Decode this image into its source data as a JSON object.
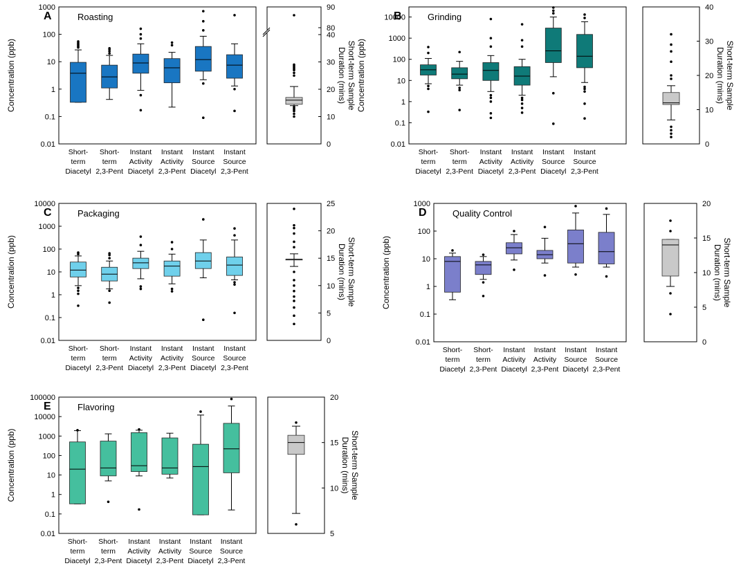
{
  "figure": {
    "ylabel": "Concentration (ppb)",
    "duration_label_line1": "Short-term Sample",
    "duration_label_line2": "Duration (mins)",
    "categories": [
      [
        "Short-",
        "term",
        "Diacetyl"
      ],
      [
        "Short-",
        "term",
        "2,3-Pent"
      ],
      [
        "Instant",
        "Activity",
        "Diacetyl"
      ],
      [
        "Instant",
        "Activity",
        "2,3-Pent"
      ],
      [
        "Instant",
        "Source",
        "Diacetyl"
      ],
      [
        "Instant",
        "Source",
        "2,3-Pent"
      ]
    ]
  },
  "chart_data": [
    {
      "type": "box",
      "panel": "A",
      "title": "Roasting",
      "color": "#1976c2",
      "yscale": "log",
      "ylim": [
        0.01,
        1000
      ],
      "yticks": [
        "0.01",
        "0.1",
        "1",
        "10",
        "100",
        "1000"
      ],
      "boxes": [
        {
          "category": "Short-term Diacetyl",
          "whisker_low": 0.33,
          "q1": 0.33,
          "median": 3.8,
          "q3": 9.5,
          "whisker_high": 27,
          "outliers": [
            33,
            36,
            40,
            44,
            49,
            55
          ]
        },
        {
          "category": "Short-term 2,3-Pent",
          "whisker_low": 0.42,
          "q1": 1.1,
          "median": 2.8,
          "q3": 7.5,
          "whisker_high": 17,
          "outliers": [
            20,
            24,
            28,
            31
          ]
        },
        {
          "category": "Instant Activity Diacetyl",
          "whisker_low": 0.9,
          "q1": 3.8,
          "median": 9,
          "q3": 19,
          "whisker_high": 45,
          "outliers": [
            0.17,
            0.6,
            70,
            100,
            160
          ]
        },
        {
          "category": "Instant Activity 2,3-Pent",
          "whisker_low": 0.22,
          "q1": 1.7,
          "median": 6,
          "q3": 13,
          "whisker_high": 22,
          "outliers": [
            40,
            50
          ]
        },
        {
          "category": "Instant Source Diacetyl",
          "whisker_low": 2.2,
          "q1": 4.5,
          "median": 12,
          "q3": 36,
          "whisker_high": 85,
          "outliers": [
            0.09,
            1.6,
            140,
            300,
            700
          ]
        },
        {
          "category": "Instant Source 2,3-Pent",
          "whisker_low": 1.3,
          "q1": 2.5,
          "median": 7.5,
          "q3": 18,
          "whisker_high": 45,
          "outliers": [
            0.16,
            1,
            500
          ]
        }
      ],
      "duration": {
        "ylim": [
          0,
          90
        ],
        "yticks": [
          "0",
          "10",
          "20",
          "30",
          "40",
          "80",
          "90"
        ],
        "axis_break": true,
        "whisker_low": 14,
        "q1": 14.5,
        "median": 16,
        "q3": 17,
        "whisker_high": 21,
        "outliers": [
          10,
          11,
          12,
          12.5,
          13,
          13.5,
          25,
          26,
          27,
          27.5,
          28,
          28.5,
          29,
          86
        ]
      }
    },
    {
      "type": "box",
      "panel": "B",
      "title": "Grinding",
      "color": "#0f7a78",
      "yscale": "log",
      "ylim": [
        0.01,
        30000
      ],
      "yticks": [
        "0.01",
        "0.1",
        "1",
        "10",
        "100",
        "1000",
        "10000"
      ],
      "boxes": [
        {
          "category": "Short-term Diacetyl",
          "whisker_low": 7,
          "q1": 18,
          "median": 32,
          "q3": 55,
          "whisker_high": 110,
          "outliers": [
            0.33,
            4,
            5.5,
            200,
            380
          ]
        },
        {
          "category": "Short-term 2,3-Pent",
          "whisker_low": 6,
          "q1": 12,
          "median": 20,
          "q3": 40,
          "whisker_high": 80,
          "outliers": [
            0.4,
            3.5,
            4.5,
            220
          ]
        },
        {
          "category": "Instant Activity Diacetyl",
          "whisker_low": 3,
          "q1": 10,
          "median": 30,
          "q3": 70,
          "whisker_high": 150,
          "outliers": [
            0.17,
            0.28,
            1,
            1.5,
            2,
            400,
            1000,
            8000
          ]
        },
        {
          "category": "Instant Activity 2,3-Pent",
          "whisker_low": 2,
          "q1": 6,
          "median": 16,
          "q3": 45,
          "whisker_high": 100,
          "outliers": [
            0.3,
            0.5,
            0.8,
            1.2,
            1.5,
            400,
            800,
            4500
          ]
        },
        {
          "category": "Instant Source Diacetyl",
          "whisker_low": 15,
          "q1": 70,
          "median": 250,
          "q3": 3000,
          "whisker_high": 10000,
          "outliers": [
            0.09,
            2.5,
            15000,
            20000,
            28000
          ]
        },
        {
          "category": "Instant Source 2,3-Pent",
          "whisker_low": 8,
          "q1": 40,
          "median": 140,
          "q3": 1500,
          "whisker_high": 6000,
          "outliers": [
            0.16,
            0.8,
            3,
            4,
            5,
            9000,
            13000
          ]
        }
      ],
      "duration": {
        "ylim": [
          0,
          40
        ],
        "yticks": [
          "0",
          "10",
          "20",
          "30",
          "40"
        ],
        "whisker_low": 7,
        "q1": 11.5,
        "median": 12,
        "q3": 15,
        "whisker_high": 17,
        "outliers": [
          2,
          3,
          4,
          5,
          19,
          20,
          24,
          27,
          29,
          32
        ]
      }
    },
    {
      "type": "box",
      "panel": "C",
      "title": "Packaging",
      "color": "#6fd0eb",
      "yscale": "log",
      "ylim": [
        0.01,
        10000
      ],
      "yticks": [
        "0.01",
        "0.1",
        "1",
        "10",
        "100",
        "1000",
        "10000"
      ],
      "boxes": [
        {
          "category": "Short-term Diacetyl",
          "whisker_low": 2.5,
          "q1": 6,
          "median": 12,
          "q3": 27,
          "whisker_high": 50,
          "outliers": [
            0.33,
            1.1,
            1.5,
            2,
            60,
            70
          ]
        },
        {
          "category": "Short-term 2,3-Pent",
          "whisker_low": 1.8,
          "q1": 4,
          "median": 8,
          "q3": 16,
          "whisker_high": 30,
          "outliers": [
            0.45,
            1.5,
            40,
            55,
            65
          ]
        },
        {
          "category": "Instant Activity Diacetyl",
          "whisker_low": 5,
          "q1": 14,
          "median": 25,
          "q3": 40,
          "whisker_high": 80,
          "outliers": [
            1.8,
            2.3,
            150,
            350
          ]
        },
        {
          "category": "Instant Activity 2,3-Pent",
          "whisker_low": 3,
          "q1": 6.5,
          "median": 18,
          "q3": 30,
          "whisker_high": 60,
          "outliers": [
            1.4,
            1.8,
            100,
            200
          ]
        },
        {
          "category": "Instant Source Diacetyl",
          "whisker_low": 5.5,
          "q1": 14,
          "median": 30,
          "q3": 70,
          "whisker_high": 250,
          "outliers": [
            0.08,
            2000
          ]
        },
        {
          "category": "Instant Source 2,3-Pent",
          "whisker_low": 4.5,
          "q1": 7,
          "median": 20,
          "q3": 45,
          "whisker_high": 250,
          "outliers": [
            0.16,
            2.8,
            3.5,
            400,
            800
          ]
        }
      ],
      "duration": {
        "ylim": [
          0,
          25
        ],
        "yticks": [
          "0",
          "5",
          "10",
          "15",
          "20",
          "25"
        ],
        "whisker_low": 13.5,
        "q1": 14.8,
        "median": 14.8,
        "q3": 14.8,
        "whisker_high": 15.8,
        "outliers": [
          3,
          4.5,
          6,
          7.2,
          8,
          9,
          10,
          11,
          12.5,
          17,
          18,
          19.5,
          20.5,
          21,
          24
        ]
      }
    },
    {
      "type": "box",
      "panel": "D",
      "title": "Quality Control",
      "color": "#7b7fcb",
      "yscale": "log",
      "ylim": [
        0.01,
        1000
      ],
      "yticks": [
        "0.01",
        "0.1",
        "1",
        "10",
        "100",
        "1000"
      ],
      "boxes": [
        {
          "category": "Short-term Diacetyl",
          "whisker_low": 0.33,
          "q1": 0.62,
          "median": 8,
          "q3": 12,
          "whisker_high": 16,
          "outliers": [
            20
          ]
        },
        {
          "category": "Short-term 2,3-Pent",
          "whisker_low": 1.8,
          "q1": 2.7,
          "median": 6,
          "q3": 8,
          "whisker_high": 12,
          "outliers": [
            0.45,
            1.4,
            14
          ]
        },
        {
          "category": "Instant Activity Diacetyl",
          "whisker_low": 9,
          "q1": 15,
          "median": 25,
          "q3": 38,
          "whisker_high": 75,
          "outliers": [
            4,
            100
          ]
        },
        {
          "category": "Instant Activity 2,3-Pent",
          "whisker_low": 7,
          "q1": 10,
          "median": 14,
          "q3": 20,
          "whisker_high": 55,
          "outliers": [
            2.5,
            140
          ]
        },
        {
          "category": "Instant Source Diacetyl",
          "whisker_low": 5,
          "q1": 7,
          "median": 35,
          "q3": 110,
          "whisker_high": 450,
          "outliers": [
            2.7,
            800
          ]
        },
        {
          "category": "Instant Source 2,3-Pent",
          "whisker_low": 5,
          "q1": 6.5,
          "median": 18,
          "q3": 90,
          "whisker_high": 400,
          "outliers": [
            2.3,
            650
          ]
        }
      ],
      "duration": {
        "ylim": [
          0,
          20
        ],
        "yticks": [
          "0",
          "5",
          "10",
          "15",
          "20"
        ],
        "whisker_low": 8,
        "q1": 9.5,
        "median": 14,
        "q3": 14.8,
        "whisker_high": 14.8,
        "outliers": [
          4,
          7,
          16,
          17.5
        ]
      }
    },
    {
      "type": "box",
      "panel": "E",
      "title": "Flavoring",
      "color": "#45bf9e",
      "yscale": "log",
      "ylim": [
        0.01,
        100000
      ],
      "yticks": [
        "0.01",
        "0.1",
        "1",
        "10",
        "100",
        "1000",
        "10000",
        "100000"
      ],
      "boxes": [
        {
          "category": "Short-term Diacetyl",
          "whisker_low": 0.33,
          "q1": 0.33,
          "median": 20,
          "q3": 500,
          "whisker_high": 1900,
          "outliers": [
            2000
          ]
        },
        {
          "category": "Short-term 2,3-Pent",
          "whisker_low": 5,
          "q1": 9,
          "median": 23,
          "q3": 550,
          "whisker_high": 1300,
          "outliers": [
            0.42
          ]
        },
        {
          "category": "Instant Activity Diacetyl",
          "whisker_low": 9,
          "q1": 15,
          "median": 30,
          "q3": 1500,
          "whisker_high": 2000,
          "outliers": [
            0.17,
            2200
          ]
        },
        {
          "category": "Instant Activity 2,3-Pent",
          "whisker_low": 7,
          "q1": 11,
          "median": 23,
          "q3": 800,
          "whisker_high": 1400,
          "outliers": []
        },
        {
          "category": "Instant Source Diacetyl",
          "whisker_low": 0.09,
          "q1": 0.09,
          "median": 27,
          "q3": 380,
          "whisker_high": 12000,
          "outliers": [
            18000
          ]
        },
        {
          "category": "Instant Source 2,3-Pent",
          "whisker_low": 0.16,
          "q1": 13,
          "median": 220,
          "q3": 4500,
          "whisker_high": 35000,
          "outliers": [
            80000
          ]
        }
      ],
      "duration": {
        "ylim": [
          5,
          20
        ],
        "yticks": [
          "5",
          "10",
          "15",
          "20"
        ],
        "whisker_low": 7.2,
        "q1": 13.7,
        "median": 15,
        "q3": 15.8,
        "whisker_high": 16.8,
        "outliers": [
          6,
          17.2
        ]
      }
    }
  ]
}
